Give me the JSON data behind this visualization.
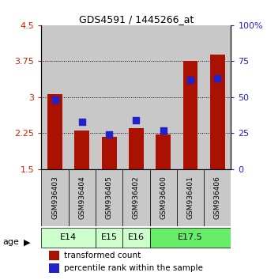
{
  "title": "GDS4591 / 1445266_at",
  "samples": [
    "GSM936403",
    "GSM936404",
    "GSM936405",
    "GSM936402",
    "GSM936400",
    "GSM936401",
    "GSM936406"
  ],
  "transformed_count": [
    3.07,
    2.3,
    2.17,
    2.35,
    2.22,
    3.75,
    3.88
  ],
  "percentile_rank": [
    48,
    33,
    24,
    34,
    27,
    62,
    63
  ],
  "ylim_left": [
    1.5,
    4.5
  ],
  "ylim_right": [
    0,
    100
  ],
  "yticks_left": [
    1.5,
    2.25,
    3.0,
    3.75,
    4.5
  ],
  "yticks_right": [
    0,
    25,
    50,
    75,
    100
  ],
  "ytick_labels_left": [
    "1.5",
    "2.25",
    "3",
    "3.75",
    "4.5"
  ],
  "ytick_labels_right": [
    "0",
    "25",
    "50",
    "75",
    "100%"
  ],
  "age_groups": [
    {
      "label": "E14",
      "span": [
        0,
        1
      ],
      "color": "#ccffcc"
    },
    {
      "label": "E15",
      "span": [
        2,
        2
      ],
      "color": "#ccffcc"
    },
    {
      "label": "E16",
      "span": [
        3,
        3
      ],
      "color": "#ccffcc"
    },
    {
      "label": "E17.5",
      "span": [
        4,
        6
      ],
      "color": "#66ee66"
    }
  ],
  "bar_color": "#aa1100",
  "dot_color": "#2222cc",
  "bar_width": 0.55,
  "col_bg": "#c8c8c8",
  "plot_bg": "#ffffff",
  "legend_tc": "transformed count",
  "legend_pr": "percentile rank within the sample",
  "age_label": "age",
  "left_tick_color": "#cc2200",
  "right_tick_color": "#2222cc"
}
